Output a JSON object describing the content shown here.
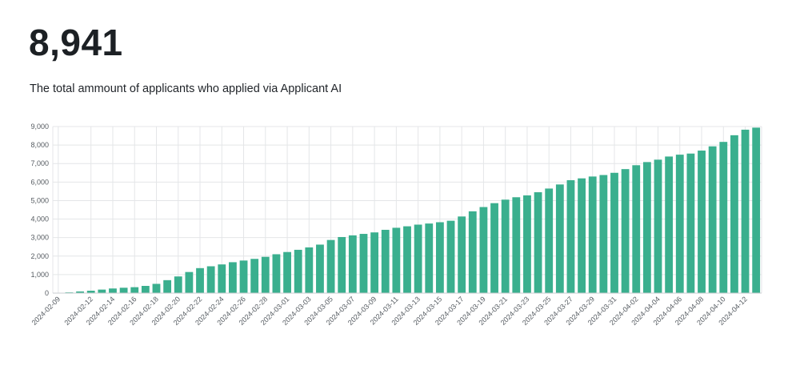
{
  "header": {
    "total": "8,941",
    "description": "The total ammount of applicants who applied via Applicant AI"
  },
  "colors": {
    "bar": "#3aaf8e",
    "grid": "#e4e6e8",
    "axis": "#c9ccd0"
  },
  "chart_data": {
    "type": "bar",
    "title": "",
    "xlabel": "",
    "ylabel": "",
    "ylim": [
      0,
      9000
    ],
    "yticks": [
      0,
      1000,
      2000,
      3000,
      4000,
      5000,
      6000,
      7000,
      8000,
      9000
    ],
    "ytick_labels": [
      "0",
      "1,000",
      "2,000",
      "3,000",
      "4,000",
      "5,000",
      "6,000",
      "7,000",
      "8,000",
      "9,000"
    ],
    "grid": true,
    "legend": "none",
    "xtick_labels": [
      "2024-02-09",
      "2024-02-12",
      "2024-02-14",
      "2024-02-16",
      "2024-02-18",
      "2024-02-20",
      "2024-02-22",
      "2024-02-24",
      "2024-02-26",
      "2024-02-28",
      "2024-03-01",
      "2024-03-03",
      "2024-03-05",
      "2024-03-07",
      "2024-03-09",
      "2024-03-11",
      "2024-03-13",
      "2024-03-15",
      "2024-03-17",
      "2024-03-19",
      "2024-03-21",
      "2024-03-23",
      "2024-03-25",
      "2024-03-27",
      "2024-03-29",
      "2024-03-31",
      "2024-04-02",
      "2024-04-04",
      "2024-04-06",
      "2024-04-08",
      "2024-04-10",
      "2024-04-12"
    ],
    "categories": [
      "2024-02-09",
      "2024-02-10",
      "2024-02-11",
      "2024-02-12",
      "2024-02-13",
      "2024-02-14",
      "2024-02-15",
      "2024-02-16",
      "2024-02-17",
      "2024-02-18",
      "2024-02-19",
      "2024-02-20",
      "2024-02-21",
      "2024-02-22",
      "2024-02-23",
      "2024-02-24",
      "2024-02-25",
      "2024-02-26",
      "2024-02-27",
      "2024-02-28",
      "2024-02-29",
      "2024-03-01",
      "2024-03-02",
      "2024-03-03",
      "2024-03-04",
      "2024-03-05",
      "2024-03-06",
      "2024-03-07",
      "2024-03-08",
      "2024-03-09",
      "2024-03-10",
      "2024-03-11",
      "2024-03-12",
      "2024-03-13",
      "2024-03-14",
      "2024-03-15",
      "2024-03-16",
      "2024-03-17",
      "2024-03-18",
      "2024-03-19",
      "2024-03-20",
      "2024-03-21",
      "2024-03-22",
      "2024-03-23",
      "2024-03-24",
      "2024-03-25",
      "2024-03-26",
      "2024-03-27",
      "2024-03-28",
      "2024-03-29",
      "2024-03-30",
      "2024-03-31",
      "2024-04-01",
      "2024-04-02",
      "2024-04-03",
      "2024-04-04",
      "2024-04-05",
      "2024-04-06",
      "2024-04-07",
      "2024-04-08",
      "2024-04-09",
      "2024-04-10",
      "2024-04-11",
      "2024-04-12",
      "2024-04-13"
    ],
    "values": [
      20,
      40,
      90,
      130,
      190,
      250,
      290,
      320,
      390,
      500,
      700,
      900,
      1140,
      1350,
      1450,
      1550,
      1670,
      1760,
      1850,
      1960,
      2100,
      2220,
      2340,
      2470,
      2620,
      2870,
      3030,
      3120,
      3200,
      3280,
      3420,
      3530,
      3610,
      3700,
      3760,
      3830,
      3910,
      4140,
      4420,
      4650,
      4860,
      5050,
      5180,
      5280,
      5450,
      5650,
      5870,
      6100,
      6200,
      6300,
      6380,
      6500,
      6700,
      6910,
      7080,
      7210,
      7380,
      7480,
      7540,
      7700,
      7930,
      8170,
      8530,
      8830,
      8941
    ]
  }
}
